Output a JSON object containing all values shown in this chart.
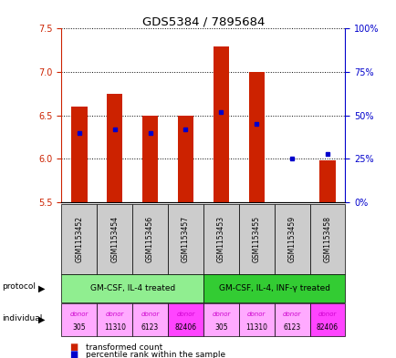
{
  "title": "GDS5384 / 7895684",
  "samples": [
    "GSM1153452",
    "GSM1153454",
    "GSM1153456",
    "GSM1153457",
    "GSM1153453",
    "GSM1153455",
    "GSM1153459",
    "GSM1153458"
  ],
  "transformed_counts": [
    6.6,
    6.75,
    6.5,
    6.5,
    7.3,
    7.0,
    5.5,
    5.98
  ],
  "percentile_ranks": [
    40,
    42,
    40,
    42,
    52,
    45,
    25,
    28
  ],
  "ylim_left": [
    5.5,
    7.5
  ],
  "ylim_right": [
    0,
    100
  ],
  "yticks_left": [
    5.5,
    6.0,
    6.5,
    7.0,
    7.5
  ],
  "yticks_right": [
    0,
    25,
    50,
    75,
    100
  ],
  "protocol_groups": [
    {
      "label": "GM-CSF, IL-4 treated",
      "indices": [
        0,
        1,
        2,
        3
      ],
      "color": "#90EE90"
    },
    {
      "label": "GM-CSF, IL-4, INF-γ treated",
      "indices": [
        4,
        5,
        6,
        7
      ],
      "color": "#33CC33"
    }
  ],
  "individual_labels": [
    [
      "donor",
      "305"
    ],
    [
      "donor",
      "11310"
    ],
    [
      "donor",
      "6123"
    ],
    [
      "donor",
      "82406"
    ],
    [
      "donor",
      "305"
    ],
    [
      "donor",
      "11310"
    ],
    [
      "donor",
      "6123"
    ],
    [
      "donor",
      "82406"
    ]
  ],
  "individual_colors": [
    "#FFAAFF",
    "#FFAAFF",
    "#FFAAFF",
    "#FF44FF",
    "#FFAAFF",
    "#FFAAFF",
    "#FFAAFF",
    "#FF44FF"
  ],
  "bar_color": "#CC2200",
  "dot_color": "#0000CC",
  "bar_bottom": 5.5,
  "left_yaxis_color": "#CC2200",
  "right_yaxis_color": "#0000CC"
}
